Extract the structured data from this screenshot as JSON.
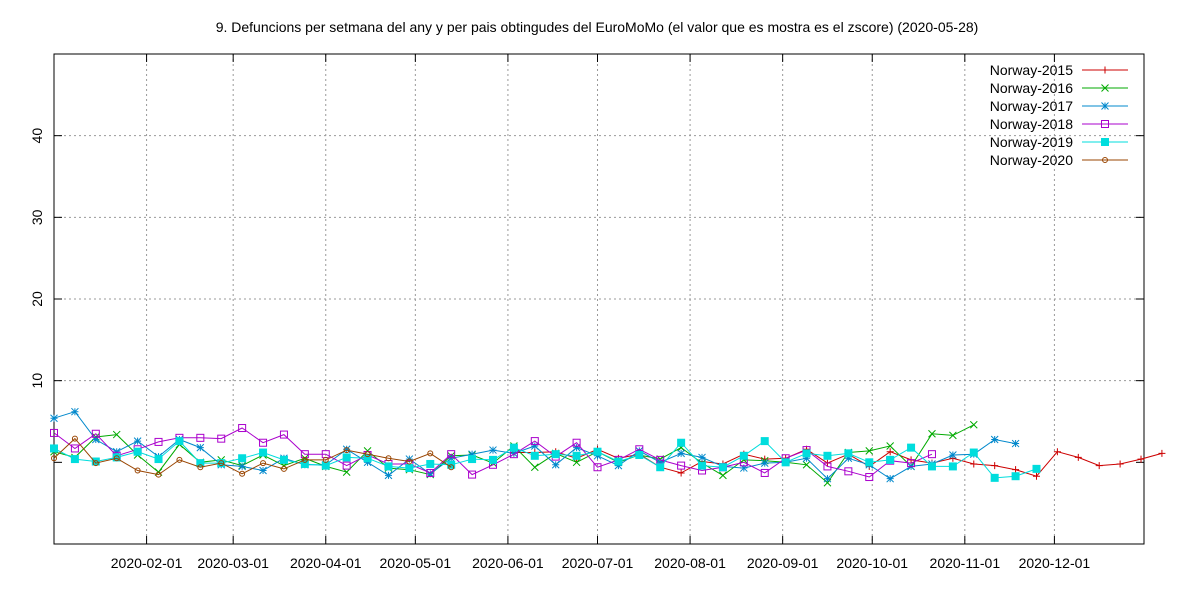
{
  "chart_data": {
    "type": "line",
    "title": "9. Defuncions per setmana del any y per pais obtingudes del EuroMoMo (el valor que es mostra es el zscore) (2020-05-28)",
    "xlabel": "",
    "ylabel": "",
    "x_axis": {
      "type": "date",
      "min": "2020-01-01",
      "max": "2020-12-31"
    },
    "ylim": [
      -10,
      50
    ],
    "yticks": [
      10,
      20,
      30,
      40
    ],
    "x_tick_labels": [
      "2020-02-01",
      "2020-03-01",
      "2020-04-01",
      "2020-05-01",
      "2020-06-01",
      "2020-07-01",
      "2020-08-01",
      "2020-09-01",
      "2020-10-01",
      "2020-11-01",
      "2020-12-01"
    ],
    "grid": true,
    "legend_position": "top-right",
    "x_start": "2020-01-01",
    "x_step_days": 7,
    "series": [
      {
        "name": "Norway-2015",
        "color": "#cc0000",
        "marker": "plus",
        "values": [
          null,
          null,
          null,
          null,
          null,
          null,
          null,
          null,
          null,
          null,
          null,
          null,
          null,
          null,
          null,
          null,
          null,
          null,
          null,
          null,
          null,
          null,
          1.2,
          1.2,
          1.3,
          0.5,
          1.6,
          0.5,
          1.0,
          -0.6,
          -1.3,
          0.1,
          -0.2,
          1.0,
          0.4,
          0.5,
          1.6,
          -0.1,
          1.0,
          -0.5,
          1.3,
          0.3,
          -0.1,
          0.5,
          -0.2,
          -0.4,
          -0.9,
          -1.7,
          1.3,
          0.6,
          -0.4,
          -0.2,
          0.4,
          1.1
        ]
      },
      {
        "name": "Norway-2016",
        "color": "#00aa00",
        "marker": "x",
        "values": [
          1.3,
          0.6,
          3.1,
          3.4,
          0.9,
          -1.2,
          2.2,
          0.0,
          0.3,
          -0.4,
          0.9,
          -0.4,
          0.5,
          -0.5,
          -1.2,
          1.4,
          -0.7,
          -0.9,
          -1.5,
          0.8,
          0.9,
          -0.1,
          2.0,
          -0.6,
          1.1,
          0.0,
          1.3,
          0.0,
          0.9,
          0.4,
          1.8,
          -0.1,
          -1.6,
          0.3,
          0.2,
          0.0,
          -0.3,
          -2.5,
          1.2,
          1.4,
          2.0,
          -0.5,
          3.5,
          3.3,
          4.6
        ]
      },
      {
        "name": "Norway-2017",
        "color": "#0088cc",
        "marker": "asterisk",
        "values": [
          5.4,
          6.2,
          2.8,
          1.3,
          2.6,
          0.7,
          2.8,
          1.8,
          -0.3,
          -0.5,
          -1.0,
          0.5,
          -0.3,
          -0.3,
          1.6,
          0.0,
          -1.6,
          0.4,
          -1.4,
          0.5,
          1.0,
          1.5,
          1.1,
          2.0,
          -0.3,
          1.8,
          0.8,
          -0.4,
          1.4,
          0.0,
          1.1,
          0.6,
          -0.5,
          -0.7,
          -0.1,
          0.0,
          0.5,
          -2.0,
          0.5,
          -0.3,
          -2.0,
          -0.5,
          -0.2,
          0.9,
          1.0,
          2.8,
          2.3
        ]
      },
      {
        "name": "Norway-2018",
        "color": "#aa00cc",
        "marker": "square-open",
        "values": [
          3.6,
          1.7,
          3.5,
          0.8,
          1.6,
          2.5,
          3.0,
          3.0,
          2.9,
          4.2,
          2.4,
          3.4,
          1.0,
          1.0,
          -0.4,
          0.9,
          -0.2,
          -0.2,
          -1.3,
          1.0,
          -1.5,
          -0.3,
          1.0,
          2.6,
          0.7,
          2.4,
          -0.6,
          0.3,
          1.6,
          0.3,
          -0.4,
          -1.0,
          -0.6,
          0.0,
          -1.3,
          0.5,
          1.5,
          -0.5,
          -1.1,
          -1.8,
          0.2,
          -0.1,
          1.0
        ]
      },
      {
        "name": "Norway-2019",
        "color": "#00dddd",
        "marker": "square-filled",
        "values": [
          1.7,
          0.4,
          0.1,
          0.6,
          1.3,
          0.4,
          2.6,
          -0.1,
          -0.1,
          0.5,
          1.2,
          0.3,
          -0.2,
          -0.4,
          0.6,
          0.5,
          -0.5,
          -0.7,
          -0.2,
          -0.3,
          0.4,
          0.3,
          1.8,
          0.8,
          1.0,
          0.8,
          1.3,
          0.1,
          0.9,
          -0.6,
          2.4,
          -0.4,
          -0.6,
          0.8,
          2.6,
          0.0,
          1.1,
          0.8,
          1.1,
          0.0,
          0.3,
          1.8,
          -0.5,
          -0.5,
          1.2,
          -1.9,
          -1.7,
          -0.8
        ]
      },
      {
        "name": "Norway-2020",
        "color": "#994400",
        "marker": "circle-open",
        "values": [
          0.5,
          2.9,
          -0.1,
          0.5,
          -1.0,
          -1.5,
          0.3,
          -0.6,
          -0.1,
          -1.4,
          -0.1,
          -0.8,
          0.3,
          0.3,
          1.5,
          1.0,
          0.5,
          0.1,
          1.1,
          -0.6
        ]
      }
    ]
  }
}
